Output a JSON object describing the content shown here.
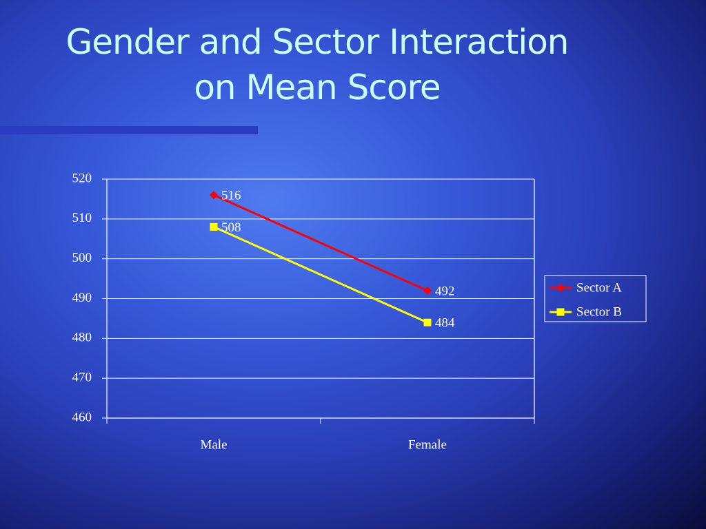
{
  "chart_data": {
    "type": "line",
    "title": "Gender and Sector Interaction\non Mean Score",
    "categories": [
      "Male",
      "Female"
    ],
    "series": [
      {
        "name": "Sector A",
        "color": "#ff0000",
        "marker": "diamond",
        "values": [
          516,
          492
        ]
      },
      {
        "name": "Sector B",
        "color": "#ffff00",
        "marker": "square",
        "values": [
          508,
          484
        ]
      }
    ],
    "ylim": [
      460,
      520
    ],
    "yticks": [
      460,
      470,
      480,
      490,
      500,
      510,
      520
    ],
    "grid": true,
    "legend": "right"
  }
}
